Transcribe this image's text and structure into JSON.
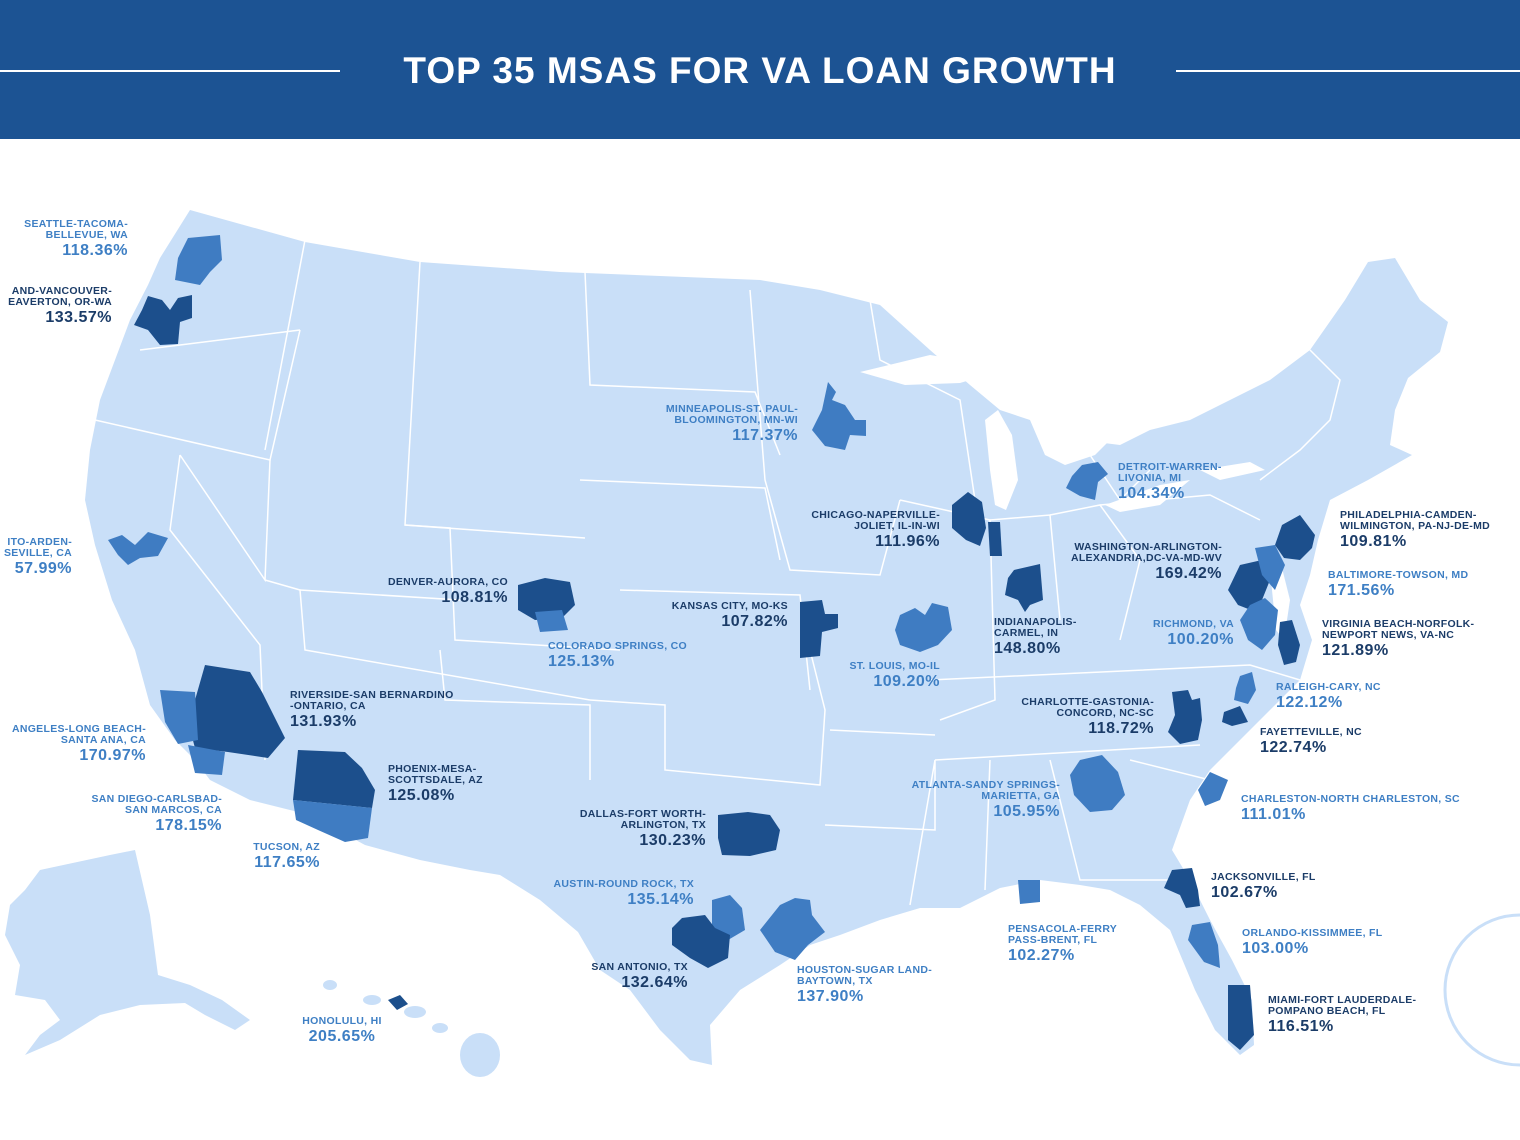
{
  "title": "TOP 35 MSAS FOR VA LOAN GROWTH",
  "colors": {
    "header": "#1c5393",
    "land": "#c9dff8",
    "border": "#ffffff",
    "msa_dark": "#1c4f8c",
    "msa_mid": "#3f7cc2",
    "label_dark": "#1b3c68",
    "label_mid": "#3e7fc4"
  },
  "msas": [
    {
      "name": "SEATTLE-TACOMA-BELLEVUE, WA",
      "name_lines": [
        "SEATTLE-TACOMA-",
        "BELLEVUE, WA"
      ],
      "value": "118.36%"
    },
    {
      "name": "…AND-VANCOUVER-…EAVERTON, OR-WA",
      "name_lines": [
        "AND-VANCOUVER-",
        "EAVERTON, OR-WA"
      ],
      "value": "133.57%"
    },
    {
      "name": "…ITO-ARDEN-…SEVILLE, CA",
      "name_lines": [
        "ITO-ARDEN-",
        "SEVILLE, CA"
      ],
      "value": "57.99%"
    },
    {
      "name": "DENVER-AURORA, CO",
      "name_lines": [
        "DENVER-AURORA, CO"
      ],
      "value": "108.81%"
    },
    {
      "name": "COLORADO SPRINGS, CO",
      "name_lines": [
        "COLORADO SPRINGS, CO"
      ],
      "value": "125.13%"
    },
    {
      "name": "RIVERSIDE-SAN BERNARDINO-ONTARIO, CA",
      "name_lines": [
        "RIVERSIDE-SAN BERNARDINO",
        "-ONTARIO, CA"
      ],
      "value": "131.93%"
    },
    {
      "name": "…ANGELES-LONG BEACH-SANTA ANA, CA",
      "name_lines": [
        "ANGELES-LONG BEACH-",
        "SANTA ANA, CA"
      ],
      "value": "170.97%"
    },
    {
      "name": "SAN DIEGO-CARLSBAD-SAN MARCOS, CA",
      "name_lines": [
        "SAN DIEGO-CARLSBAD-",
        "SAN MARCOS, CA"
      ],
      "value": "178.15%"
    },
    {
      "name": "PHOENIX-MESA-SCOTTSDALE, AZ",
      "name_lines": [
        "PHOENIX-MESA-",
        "SCOTTSDALE, AZ"
      ],
      "value": "125.08%"
    },
    {
      "name": "TUCSON, AZ",
      "name_lines": [
        "TUCSON, AZ"
      ],
      "value": "117.65%"
    },
    {
      "name": "HONOLULU, HI",
      "name_lines": [
        "HONOLULU, HI"
      ],
      "value": "205.65%"
    },
    {
      "name": "MINNEAPOLIS-ST. PAUL-BLOOMINGTON, MN-WI",
      "name_lines": [
        "MINNEAPOLIS-ST. PAUL-",
        "BLOOMINGTON, MN-WI"
      ],
      "value": "117.37%"
    },
    {
      "name": "KANSAS CITY, MO-KS",
      "name_lines": [
        "KANSAS CITY, MO-KS"
      ],
      "value": "107.82%"
    },
    {
      "name": "DALLAS-FORT WORTH-ARLINGTON, TX",
      "name_lines": [
        "DALLAS-FORT WORTH-",
        "ARLINGTON, TX"
      ],
      "value": "130.23%"
    },
    {
      "name": "AUSTIN-ROUND ROCK, TX",
      "name_lines": [
        "AUSTIN-ROUND ROCK, TX"
      ],
      "value": "135.14%"
    },
    {
      "name": "SAN ANTONIO, TX",
      "name_lines": [
        "SAN ANTONIO, TX"
      ],
      "value": "132.64%"
    },
    {
      "name": "HOUSTON-SUGAR LAND-BAYTOWN, TX",
      "name_lines": [
        "HOUSTON-SUGAR LAND-",
        "BAYTOWN, TX"
      ],
      "value": "137.90%"
    },
    {
      "name": "CHICAGO-NAPERVILLE-JOLIET, IL-IN-WI",
      "name_lines": [
        "CHICAGO-NAPERVILLE-",
        "JOLIET, IL-IN-WI"
      ],
      "value": "111.96%"
    },
    {
      "name": "ST. LOUIS, MO-IL",
      "name_lines": [
        "ST. LOUIS, MO-IL"
      ],
      "value": "109.20%"
    },
    {
      "name": "DETROIT-WARREN-LIVONIA, MI",
      "name_lines": [
        "DETROIT-WARREN-",
        "LIVONIA, MI"
      ],
      "value": "104.34%"
    },
    {
      "name": "WASHINGTON-ARLINGTON-ALEXANDRIA,DC-VA-MD-WV",
      "name_lines": [
        "WASHINGTON-ARLINGTON-",
        "ALEXANDRIA,DC-VA-MD-WV"
      ],
      "value": "169.42%"
    },
    {
      "name": "INDIANAPOLIS-CARMEL, IN",
      "name_lines": [
        "INDIANAPOLIS-",
        "CARMEL, IN"
      ],
      "value": "148.80%"
    },
    {
      "name": "RICHMOND, VA",
      "name_lines": [
        "RICHMOND, VA"
      ],
      "value": "100.20%"
    },
    {
      "name": "PHILADELPHIA-CAMDEN-WILMINGTON, PA-NJ-DE-MD",
      "name_lines": [
        "PHILADELPHIA-CAMDEN-",
        "WILMINGTON, PA-NJ-DE-MD"
      ],
      "value": "109.81%"
    },
    {
      "name": "BALTIMORE-TOWSON, MD",
      "name_lines": [
        "BALTIMORE-TOWSON, MD"
      ],
      "value": "171.56%"
    },
    {
      "name": "VIRGINIA BEACH-NORFOLK-NEWPORT NEWS, VA-NC",
      "name_lines": [
        "VIRGINIA BEACH-NORFOLK-",
        "NEWPORT NEWS, VA-NC"
      ],
      "value": "121.89%"
    },
    {
      "name": "RALEIGH-CARY, NC",
      "name_lines": [
        "RALEIGH-CARY, NC"
      ],
      "value": "122.12%"
    },
    {
      "name": "CHARLOTTE-GASTONIA-CONCORD, NC-SC",
      "name_lines": [
        "CHARLOTTE-GASTONIA-",
        "CONCORD, NC-SC"
      ],
      "value": "118.72%"
    },
    {
      "name": "FAYETTEVILLE, NC",
      "name_lines": [
        "FAYETTEVILLE, NC"
      ],
      "value": "122.74%"
    },
    {
      "name": "ATLANTA-SANDY SPRINGS-MARIETTA, GA",
      "name_lines": [
        "ATLANTA-SANDY SPRINGS-",
        "MARIETTA, GA"
      ],
      "value": "105.95%"
    },
    {
      "name": "CHARLESTON-NORTH CHARLESTON, SC",
      "name_lines": [
        "CHARLESTON-NORTH CHARLESTON, SC"
      ],
      "value": "111.01%"
    },
    {
      "name": "JACKSONVILLE, FL",
      "name_lines": [
        "JACKSONVILLE, FL"
      ],
      "value": "102.67%"
    },
    {
      "name": "PENSACOLA-FERRY PASS-BRENT, FL",
      "name_lines": [
        "PENSACOLA-FERRY",
        "PASS-BRENT, FL"
      ],
      "value": "102.27%"
    },
    {
      "name": "ORLANDO-KISSIMMEE, FL",
      "name_lines": [
        "ORLANDO-KISSIMMEE, FL"
      ],
      "value": "103.00%"
    },
    {
      "name": "MIAMI-FORT LAUDERDALE-POMPANO BEACH, FL",
      "name_lines": [
        "MIAMI-FORT LAUDERDALE-",
        "POMPANO BEACH, FL"
      ],
      "value": "116.51%"
    }
  ]
}
